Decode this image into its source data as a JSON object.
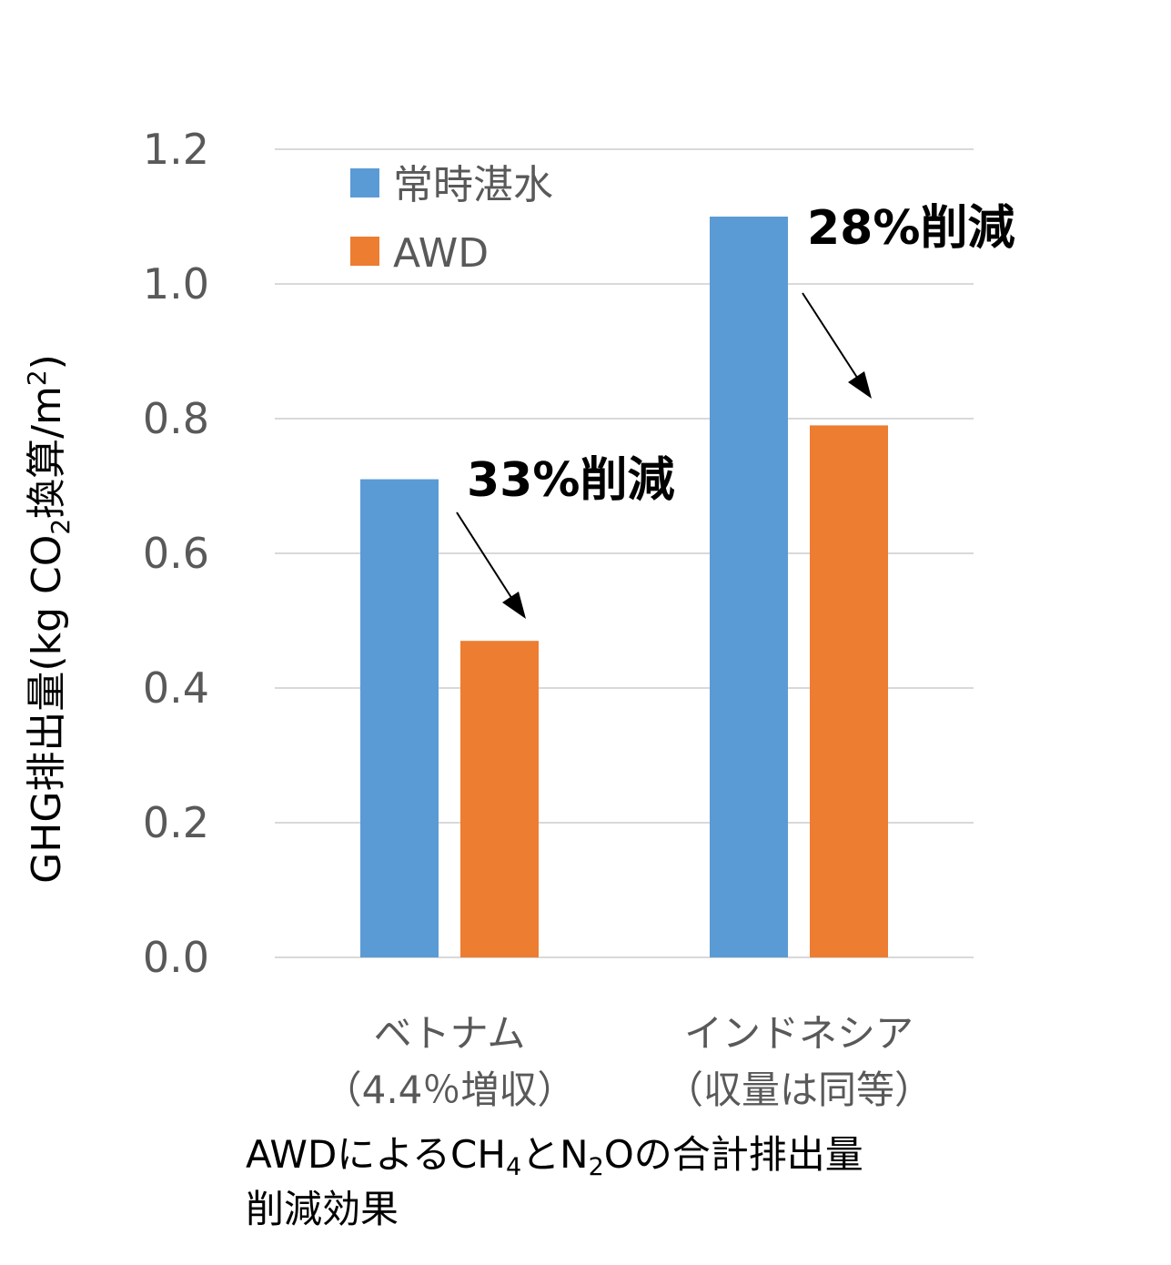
{
  "chart_data": {
    "type": "bar",
    "categories": [
      "ベトナム",
      "インドネシア"
    ],
    "category_notes": [
      "（4.4％増収）",
      "（収量は同等）"
    ],
    "series": [
      {
        "name": "常時湛水",
        "color": "#5B9BD5",
        "values": [
          0.71,
          1.1
        ]
      },
      {
        "name": "AWD",
        "color": "#ED7D31",
        "values": [
          0.47,
          0.79
        ]
      }
    ],
    "ylim": [
      0,
      1.2
    ],
    "yticks": [
      "0.0",
      "0.2",
      "0.4",
      "0.6",
      "0.8",
      "1.0",
      "1.2"
    ],
    "ylabel": {
      "main": "GHG排出量(kg CO",
      "sub": "2",
      "mid": "換算/m",
      "sup": "2",
      "end": ")"
    },
    "annotations": [
      "33%削減",
      "28%削減"
    ],
    "caption": {
      "line1_a": "AWDによるCH",
      "line1_sub1": "4",
      "line1_b": "とN",
      "line1_sub2": "2",
      "line1_c": "Oの合計排出量",
      "line2": "削減効果"
    },
    "gridline_color": "#D9D9D9"
  }
}
